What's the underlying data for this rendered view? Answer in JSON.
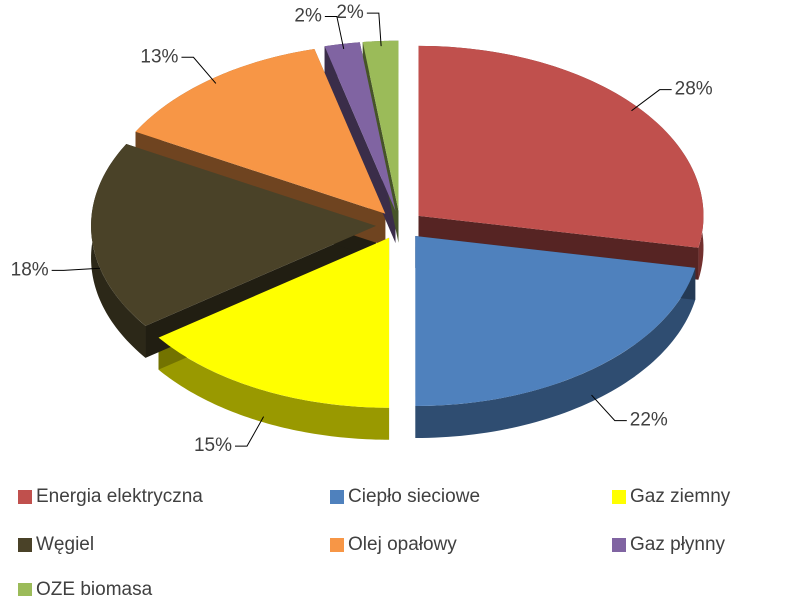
{
  "chart_data": {
    "type": "pie3d",
    "categories": [
      "Energia elektryczna",
      "Ciepło sieciowe",
      "Gaz ziemny",
      "Węgiel",
      "Olej opałowy",
      "Gaz płynny",
      "OZE biomasa"
    ],
    "values": [
      28,
      22,
      15,
      18,
      13,
      2,
      2
    ],
    "value_labels": [
      "28%",
      "22%",
      "15%",
      "18%",
      "13%",
      "2%",
      "2%"
    ],
    "colors": [
      "#c0504d",
      "#4f81bd",
      "#ffff00",
      "#4a4228",
      "#f79646",
      "#8064a2",
      "#9bbb59"
    ],
    "legend": "bottom"
  }
}
